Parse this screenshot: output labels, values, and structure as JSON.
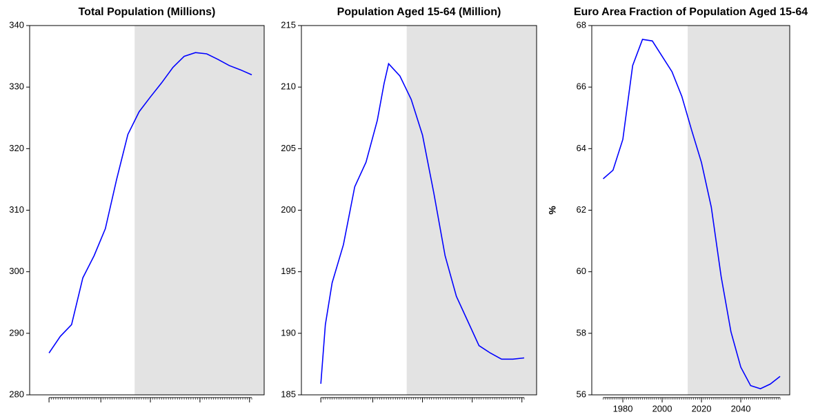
{
  "chart_data": [
    {
      "type": "line",
      "title": "Total Population (Millions)",
      "x": [
        1970,
        1975,
        1980,
        1985,
        1990,
        1995,
        2000,
        2005,
        2010,
        2015,
        2020,
        2025,
        2030,
        2035,
        2040,
        2045,
        2050,
        2055,
        2060
      ],
      "series": [
        {
          "color": "#0000ff",
          "values": [
            286.8,
            289.5,
            291.4,
            299.0,
            302.6,
            307.0,
            315.0,
            322.3,
            326.0,
            328.4,
            330.7,
            333.2,
            335.0,
            335.6,
            335.4,
            334.5,
            333.5,
            332.8,
            332.0
          ]
        }
      ],
      "xlim": [
        1961.4,
        2065.5
      ],
      "xticks": [
        1970,
        1993,
        2015,
        2037,
        2059
      ],
      "xtick_labels": false,
      "ylim": [
        280,
        340
      ],
      "yticks": [
        280,
        290,
        300,
        310,
        320,
        330,
        340
      ],
      "shade_from": 2008,
      "shade_color": "#e3e3e3"
    },
    {
      "type": "line",
      "title": "Population Aged 15-64 (Million)",
      "x": [
        1970,
        1972,
        1975,
        1980,
        1985,
        1990,
        1995,
        1998,
        2000,
        2002,
        2005,
        2010,
        2015,
        2020,
        2025,
        2030,
        2035,
        2040,
        2045,
        2050,
        2055,
        2060
      ],
      "series": [
        {
          "color": "#0000ff",
          "values": [
            185.9,
            190.7,
            194.1,
            197.2,
            201.9,
            203.9,
            207.3,
            210.3,
            211.9,
            211.5,
            210.9,
            209.0,
            206.1,
            201.4,
            196.3,
            193.0,
            191.0,
            189.0,
            188.4,
            187.9,
            187.9,
            188.0
          ]
        }
      ],
      "xlim": [
        1961.4,
        2065.5
      ],
      "xticks": [
        1970,
        1993,
        2015,
        2037,
        2059
      ],
      "xtick_labels": false,
      "ylim": [
        185,
        215
      ],
      "yticks": [
        185,
        190,
        195,
        200,
        205,
        210,
        215
      ],
      "shade_from": 2008,
      "shade_color": "#e3e3e3"
    },
    {
      "type": "line",
      "title": "Euro Area Fraction of Population Aged 15-64",
      "y_label": "%",
      "x": [
        1970,
        1975,
        1980,
        1985,
        1990,
        1995,
        2000,
        2005,
        2010,
        2015,
        2020,
        2025,
        2030,
        2035,
        2040,
        2045,
        2050,
        2055,
        2060
      ],
      "series": [
        {
          "color": "#0000ff",
          "values": [
            63.02,
            63.3,
            64.3,
            66.7,
            67.55,
            67.5,
            67.0,
            66.5,
            65.7,
            64.6,
            63.55,
            62.1,
            59.85,
            58.05,
            56.9,
            56.3,
            56.2,
            56.35,
            56.6
          ]
        }
      ],
      "xlim": [
        1964.2,
        2064.9
      ],
      "xticks": [
        1980,
        2000,
        2020,
        2040
      ],
      "xtick_labels": true,
      "ylim": [
        56,
        68
      ],
      "yticks": [
        56,
        58,
        60,
        62,
        64,
        66,
        68
      ],
      "shade_from": 2013,
      "shade_color": "#e3e3e3"
    }
  ]
}
